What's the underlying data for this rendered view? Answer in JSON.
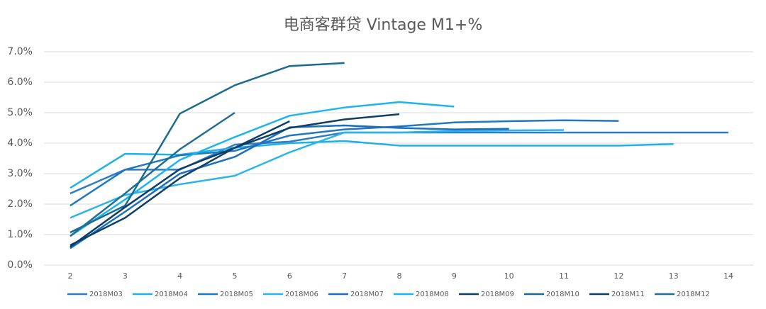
{
  "chart_data": {
    "type": "line",
    "title": "电商客群贷 Vintage M1+%",
    "x": [
      2,
      3,
      4,
      5,
      6,
      7,
      8,
      9,
      10,
      11,
      12,
      13,
      14
    ],
    "xlim": [
      2,
      14
    ],
    "xticks": [
      2,
      3,
      4,
      5,
      6,
      7,
      8,
      9,
      10,
      11,
      12,
      13,
      14
    ],
    "ylim": [
      0,
      7
    ],
    "yticks": [
      {
        "value": 0,
        "label": "0.0%"
      },
      {
        "value": 1,
        "label": "1.0%"
      },
      {
        "value": 2,
        "label": "2.0%"
      },
      {
        "value": 3,
        "label": "3.0%"
      },
      {
        "value": 4,
        "label": "4.0%"
      },
      {
        "value": 5,
        "label": "5.0%"
      },
      {
        "value": 6,
        "label": "6.0%"
      },
      {
        "value": 7,
        "label": "7.0%"
      }
    ],
    "grid": true,
    "legend": "bottom",
    "series": [
      {
        "name": "2018M03",
        "color": "#2e7dc0",
        "values": [
          2.35,
          3.13,
          3.13,
          3.95,
          4.05,
          4.35,
          4.35,
          4.35,
          4.35,
          4.35,
          4.35,
          4.35,
          4.35
        ]
      },
      {
        "name": "2018M04",
        "color": "#1fb0e8",
        "values": [
          2.53,
          3.65,
          3.62,
          3.85,
          4.0,
          4.07,
          3.92,
          3.92,
          3.92,
          3.92,
          3.92,
          3.97,
          null
        ]
      },
      {
        "name": "2018M05",
        "color": "#1f78c1",
        "values": [
          1.95,
          3.13,
          3.6,
          3.75,
          4.25,
          4.45,
          4.55,
          4.68,
          4.72,
          4.75,
          4.73,
          null,
          null
        ]
      },
      {
        "name": "2018M06",
        "color": "#2ab4ec",
        "values": [
          1.55,
          2.3,
          2.65,
          2.93,
          3.7,
          4.35,
          4.35,
          4.4,
          4.42,
          4.43,
          null,
          null,
          null
        ]
      },
      {
        "name": "2018M07",
        "color": "#1a6fbf",
        "values": [
          0.55,
          1.75,
          3.0,
          3.55,
          4.52,
          4.58,
          4.5,
          4.45,
          4.47,
          null,
          null,
          null,
          null
        ]
      },
      {
        "name": "2018M08",
        "color": "#1cb4ef",
        "values": [
          0.95,
          2.15,
          3.45,
          4.2,
          4.9,
          5.17,
          5.35,
          5.2,
          null,
          null,
          null,
          null,
          null
        ]
      },
      {
        "name": "2018M09",
        "color": "#0e3f66",
        "values": [
          0.65,
          1.55,
          2.85,
          3.85,
          4.5,
          4.78,
          4.95,
          null,
          null,
          null,
          null,
          null,
          null
        ]
      },
      {
        "name": "2018M10",
        "color": "#1a6b8f",
        "values": [
          1.07,
          1.95,
          4.97,
          5.9,
          6.53,
          6.63,
          null,
          null,
          null,
          null,
          null,
          null,
          null
        ]
      },
      {
        "name": "2018M11",
        "color": "#0d3e66",
        "values": [
          0.6,
          1.9,
          3.15,
          3.85,
          4.72,
          null,
          null,
          null,
          null,
          null,
          null,
          null,
          null
        ]
      },
      {
        "name": "2018M12",
        "color": "#1f6e96",
        "values": [
          0.95,
          2.35,
          3.8,
          5.0,
          null,
          null,
          null,
          null,
          null,
          null,
          null,
          null,
          null
        ]
      }
    ]
  }
}
